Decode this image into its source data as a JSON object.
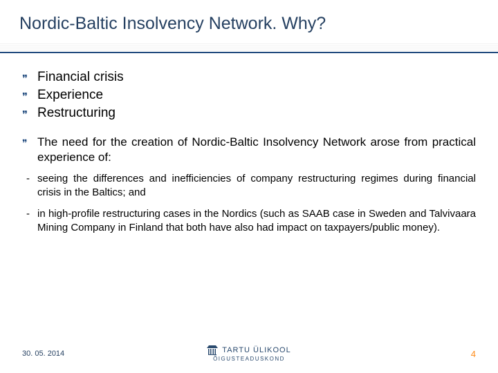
{
  "title": "Nordic-Baltic Insolvency Network. Why?",
  "bullets": {
    "b0": "Financial crisis",
    "b1": "Experience",
    "b2": "Restructuring"
  },
  "paragraph": "The need for the creation of Nordic-Baltic Insolvency Network arose from practical experience of:",
  "dashes": {
    "d0": "seeing the differences and inefficiencies of company restructuring regimes during financial crisis in the Baltics; and",
    "d1": "in high-profile restructuring cases in the Nordics (such as SAAB case in Sweden and Talvivaara Mining Company in Finland that both have also had impact on taxpayers/public money)."
  },
  "footer": {
    "date": "30. 05. 2014",
    "org": "TARTU ÜLIKOOL",
    "sub": "ÕIGUSTEADUSKOND",
    "page": "4"
  },
  "colors": {
    "title": "#254061",
    "accent": "#1f497d",
    "pagenum": "#ff8c1a"
  }
}
